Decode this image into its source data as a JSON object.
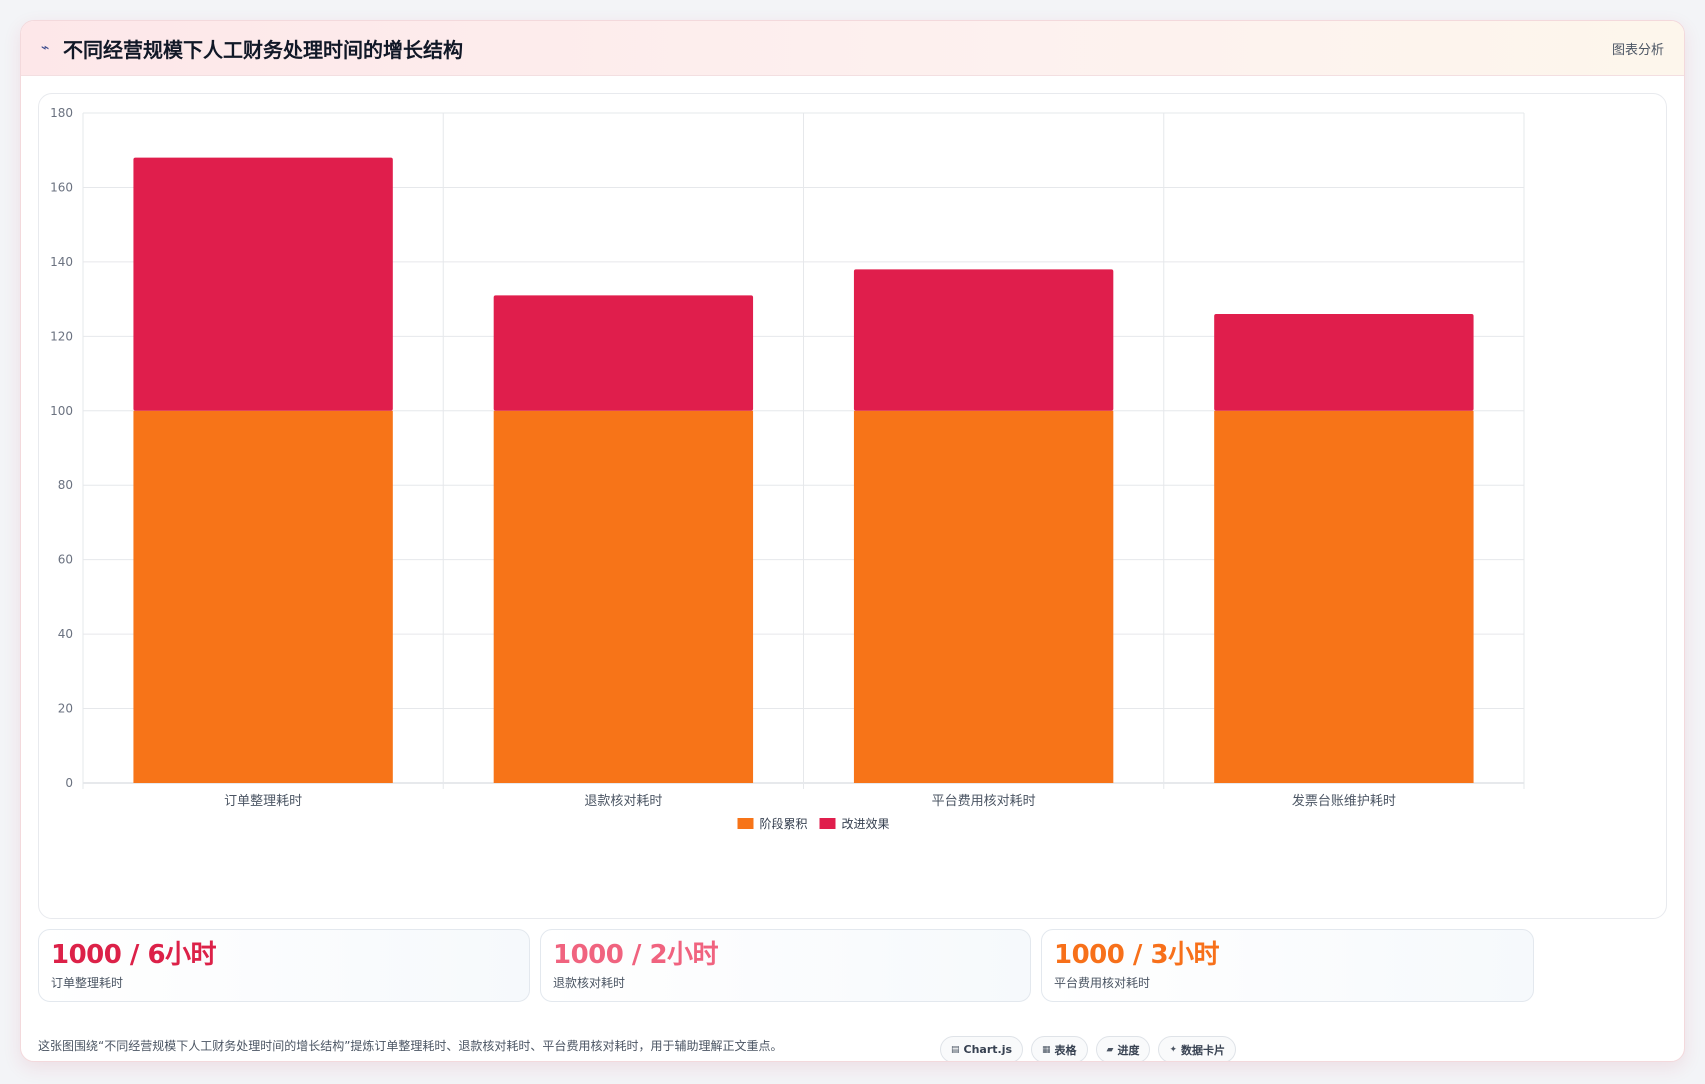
{
  "header": {
    "title": "不同经营规模下人工财务处理时间的增长结构",
    "icon": "sparkline-icon",
    "action_label": "图表分析"
  },
  "chart_data": {
    "type": "bar",
    "stacked": true,
    "title": "",
    "xlabel": "",
    "ylabel": "",
    "categories": [
      "订单整理耗时",
      "退款核对耗时",
      "平台费用核对耗时",
      "发票台账维护耗时"
    ],
    "series": [
      {
        "name": "阶段累积",
        "values": [
          100,
          100,
          100,
          100
        ],
        "color": "#f77418"
      },
      {
        "name": "改进效果",
        "values": [
          68,
          31,
          38,
          26
        ],
        "color": "#e01e4c"
      }
    ],
    "ylim": [
      0,
      180
    ],
    "yticks": [
      0,
      20,
      40,
      60,
      80,
      100,
      120,
      140,
      160,
      180
    ],
    "grid": true,
    "legend": "bottom"
  },
  "stats": [
    {
      "value": "1000 / 6小时",
      "label": "订单整理耗时",
      "color": "#dc2148"
    },
    {
      "value": "1000 / 2小时",
      "label": "退款核对耗时",
      "color": "#f0637f"
    },
    {
      "value": "1000 / 3小时",
      "label": "平台费用核对耗时",
      "color": "#f7701a"
    }
  ],
  "caption": "这张图围绕“不同经营规模下人工财务处理时间的增长结构”提炼订单整理耗时、退款核对耗时、平台费用核对耗时，用于辅助理解正文重点。",
  "tags": [
    {
      "icon": "chart-icon",
      "glyph": "▤",
      "label": "Chart.js"
    },
    {
      "icon": "table-icon",
      "glyph": "▦",
      "label": "表格"
    },
    {
      "icon": "progress-icon",
      "glyph": "▰",
      "label": "进度"
    },
    {
      "icon": "sparkle-icon",
      "glyph": "✦",
      "label": "数据卡片"
    }
  ]
}
